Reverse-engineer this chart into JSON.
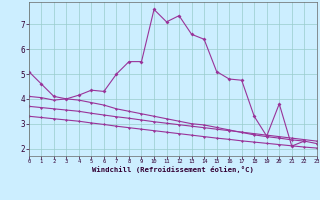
{
  "background_color": "#cceeff",
  "line_color": "#993399",
  "grid_color": "#99cccc",
  "xlabel": "Windchill (Refroidissement éolien,°C)",
  "xlim": [
    0,
    23
  ],
  "ylim": [
    1.7,
    7.9
  ],
  "xtick_labels": [
    "0",
    "1",
    "2",
    "3",
    "4",
    "5",
    "6",
    "7",
    "8",
    "9",
    "10",
    "11",
    "12",
    "13",
    "14",
    "15",
    "16",
    "17",
    "18",
    "19",
    "20",
    "21",
    "22",
    "23"
  ],
  "ytick_labels": [
    "2",
    "3",
    "4",
    "5",
    "6",
    "7"
  ],
  "ytick_vals": [
    2,
    3,
    4,
    5,
    6,
    7
  ],
  "line1_x": [
    0,
    1,
    2,
    3,
    4,
    5,
    6,
    7,
    8,
    9,
    10,
    11,
    12,
    13,
    14,
    15,
    16,
    17,
    18,
    19,
    20,
    21,
    22
  ],
  "line1_y": [
    5.1,
    4.6,
    4.1,
    4.0,
    4.15,
    4.35,
    4.3,
    5.0,
    5.5,
    5.5,
    7.6,
    7.1,
    7.35,
    6.6,
    6.4,
    5.1,
    4.8,
    4.75,
    3.3,
    2.5,
    3.8,
    2.1,
    2.3
  ],
  "line2_x": [
    0,
    1,
    2,
    3,
    4,
    5,
    6,
    7,
    8,
    9,
    10,
    11,
    12,
    13,
    14,
    15,
    16,
    17,
    18,
    19,
    20,
    21,
    22,
    23
  ],
  "line2_y": [
    4.1,
    4.05,
    3.95,
    4.0,
    3.95,
    3.85,
    3.75,
    3.6,
    3.5,
    3.4,
    3.3,
    3.2,
    3.1,
    3.0,
    2.95,
    2.85,
    2.75,
    2.65,
    2.55,
    2.48,
    2.42,
    2.35,
    2.3,
    2.2
  ],
  "line3_x": [
    0,
    1,
    2,
    3,
    4,
    5,
    6,
    7,
    8,
    9,
    10,
    11,
    12,
    13,
    14,
    15,
    16,
    17,
    18,
    19,
    20,
    21,
    22,
    23
  ],
  "line3_y": [
    3.7,
    3.65,
    3.6,
    3.55,
    3.5,
    3.42,
    3.35,
    3.28,
    3.22,
    3.15,
    3.08,
    3.02,
    2.96,
    2.9,
    2.84,
    2.78,
    2.72,
    2.66,
    2.6,
    2.54,
    2.48,
    2.42,
    2.36,
    2.3
  ],
  "line4_x": [
    0,
    1,
    2,
    3,
    4,
    5,
    6,
    7,
    8,
    9,
    10,
    11,
    12,
    13,
    14,
    15,
    16,
    17,
    18,
    19,
    20,
    21,
    22,
    23
  ],
  "line4_y": [
    3.3,
    3.25,
    3.2,
    3.15,
    3.1,
    3.03,
    2.97,
    2.9,
    2.84,
    2.78,
    2.72,
    2.66,
    2.6,
    2.54,
    2.48,
    2.42,
    2.37,
    2.31,
    2.26,
    2.21,
    2.16,
    2.11,
    2.06,
    2.02
  ]
}
